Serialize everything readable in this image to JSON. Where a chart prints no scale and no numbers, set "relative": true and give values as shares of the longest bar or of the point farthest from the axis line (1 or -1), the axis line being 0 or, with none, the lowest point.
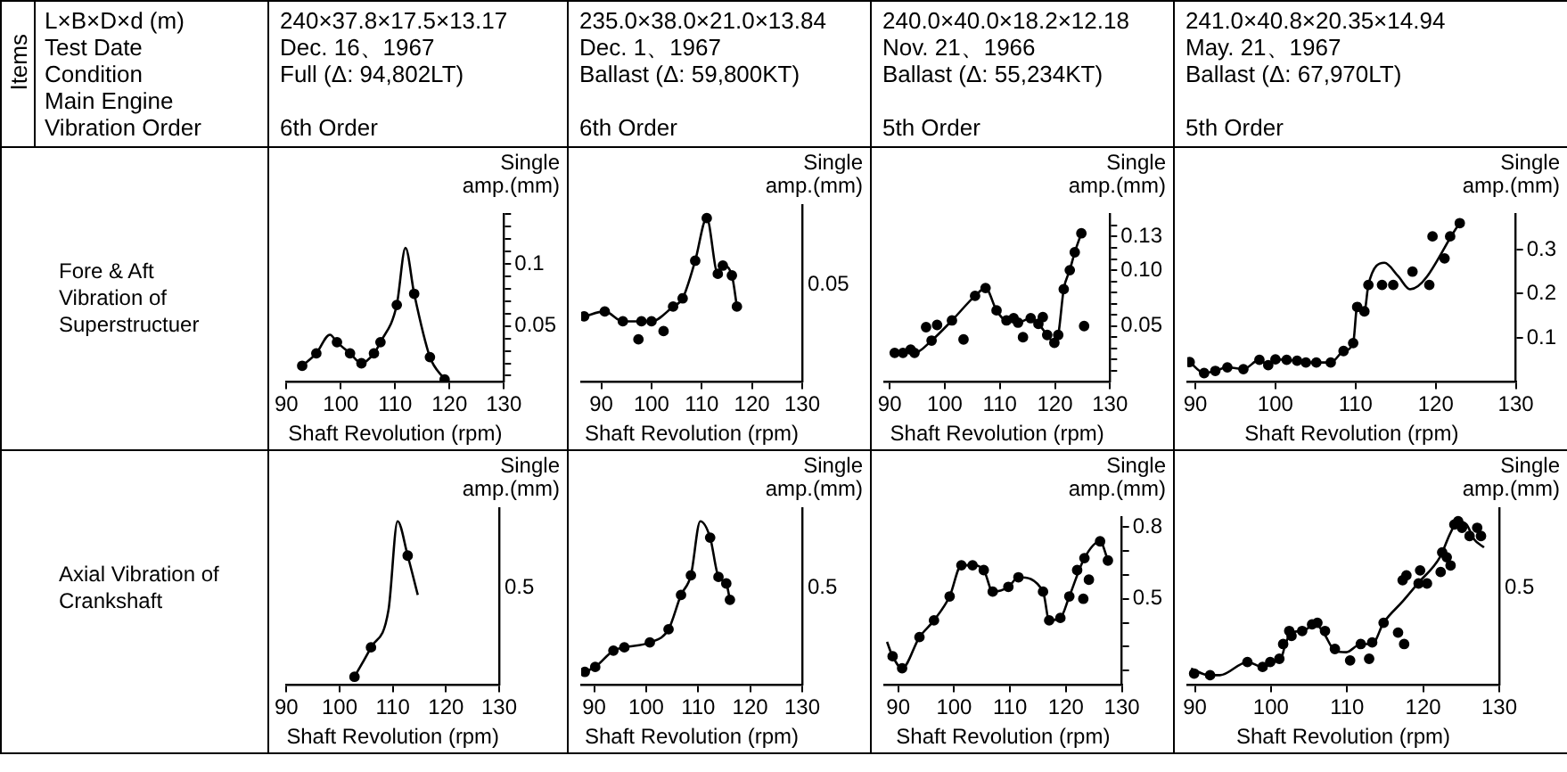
{
  "chart_data": [
    {
      "type": "other",
      "title": "Items",
      "annotations": [
        "L×B×D×d (m)",
        "Test Date",
        "Condition",
        "Main Engine",
        "Vibration Order"
      ]
    },
    {
      "type": "other",
      "annotations": [
        "240×37.8×17.5×13.17",
        "Dec. 16、1967",
        "Full (Δ: 94,802LT)",
        "6th Order"
      ]
    },
    {
      "type": "other",
      "annotations": [
        "235.0×38.0×21.0×13.84",
        "Dec. 1、1967",
        "Ballast (Δ: 59,800KT)",
        "6th Order"
      ]
    },
    {
      "type": "other",
      "annotations": [
        "240.0×40.0×18.2×12.18",
        "Nov. 21、1966",
        "Ballast (Δ: 55,234KT)",
        "5th Order"
      ]
    },
    {
      "type": "other",
      "annotations": [
        "241.0×40.8×20.35×14.94",
        "May. 21、1967",
        "Ballast (Δ: 67,970LT)",
        "5th Order"
      ]
    },
    {
      "type": "other",
      "title": "Fore & Aft Vibration of Superstructuer"
    },
    {
      "type": "line",
      "xlabel": "Shaft Revolution (rpm)",
      "ylabel": "Single amp.(mm)",
      "xlim": [
        90,
        130
      ],
      "xticks": [
        90,
        100,
        110,
        120,
        130
      ],
      "ylim": [
        0.005,
        0.14
      ],
      "yticks": [
        {
          "value": 0.01,
          "label": null
        },
        {
          "value": 0.02,
          "label": null
        },
        {
          "value": 0.03,
          "label": null
        },
        {
          "value": 0.04,
          "label": null
        },
        0.05,
        {
          "value": 0.06,
          "label": null
        },
        {
          "value": 0.07,
          "label": null
        },
        {
          "value": 0.08,
          "label": null
        },
        {
          "value": 0.09,
          "label": null
        },
        0.1,
        {
          "value": 0.11,
          "label": null
        },
        {
          "value": 0.12,
          "label": null
        },
        {
          "value": 0.13,
          "label": null
        },
        {
          "value": 0.14,
          "label": null
        }
      ],
      "series": [
        {
          "type": "line",
          "color": "#000000",
          "marker": "none",
          "x": [
            92.9,
            95.5,
            98.0,
            99.3,
            101.7,
            103.8,
            106.1,
            107.3,
            110.3,
            111.9,
            113.5,
            116.4,
            119.1
          ],
          "values": [
            0.018,
            0.028,
            0.043,
            0.037,
            0.028,
            0.02,
            0.028,
            0.037,
            0.067,
            0.113,
            0.076,
            0.025,
            0.007
          ]
        },
        {
          "type": "scatter",
          "color": "#000000",
          "marker": "circle",
          "x": [
            92.9,
            95.5,
            99.3,
            101.7,
            103.8,
            106.1,
            107.3,
            110.3,
            113.5,
            116.4,
            119.1
          ],
          "values": [
            0.018,
            0.028,
            0.037,
            0.028,
            0.02,
            0.028,
            0.037,
            0.067,
            0.076,
            0.025,
            0.007
          ]
        }
      ]
    },
    {
      "type": "line",
      "relative": true,
      "xlabel": "Shaft Revolution (rpm)",
      "ylabel": "Single amp.(mm)",
      "xlim": [
        86,
        130
      ],
      "xticks": [
        90,
        100,
        110,
        120,
        130
      ],
      "annotations": [
        "0.05"
      ],
      "series": [
        {
          "type": "line",
          "color": "#000000",
          "marker": "none",
          "x": [
            86.6,
            90.7,
            94.3,
            98.0,
            100.0,
            104.3,
            106.2,
            108.7,
            111.0,
            113.2,
            114.2,
            116.0,
            117.0
          ],
          "values": [
            0.4,
            0.43,
            0.37,
            0.37,
            0.37,
            0.46,
            0.51,
            0.74,
            1,
            0.66,
            0.71,
            0.65,
            0.46
          ]
        },
        {
          "type": "scatter",
          "color": "#000000",
          "marker": "circle",
          "x": [
            86.6,
            90.7,
            94.3,
            98.0,
            100.0,
            104.3,
            106.2,
            108.7,
            111.0,
            113.2,
            114.2,
            116.0,
            117.0,
            97.4,
            102.4
          ],
          "values": [
            0.4,
            0.43,
            0.37,
            0.37,
            0.37,
            0.46,
            0.51,
            0.74,
            1,
            0.66,
            0.71,
            0.65,
            0.46,
            0.26,
            0.31
          ]
        }
      ]
    },
    {
      "type": "line",
      "xlabel": "Shaft Revolution (rpm)",
      "ylabel": "Single amp.(mm)",
      "xlim": [
        89,
        130
      ],
      "xticks": [
        90,
        100,
        110,
        120,
        130
      ],
      "ylim": [
        0,
        0.15
      ],
      "yticks": [
        {
          "value": 0.01,
          "label": null
        },
        {
          "value": 0.02,
          "label": null
        },
        {
          "value": 0.03,
          "label": null
        },
        {
          "value": 0.04,
          "label": null
        },
        0.05,
        {
          "value": 0.06,
          "label": null
        },
        {
          "value": 0.07,
          "label": null
        },
        {
          "value": 0.08,
          "label": null
        },
        {
          "value": 0.09,
          "label": null
        },
        {
          "value": 0.1,
          "label": "0.10"
        },
        {
          "value": 0.11,
          "label": null
        },
        {
          "value": 0.12,
          "label": null
        },
        0.13,
        {
          "value": 0.14,
          "label": null
        }
      ],
      "series": [
        {
          "type": "line",
          "color": "#000000",
          "marker": "none",
          "x": [
            90.9,
            92.4,
            93.8,
            94.5,
            97.6,
            101.3,
            105.5,
            107.4,
            109.4,
            111.2,
            112.5,
            113.3,
            115.6,
            117.0,
            118.6,
            119.9,
            120.6,
            121.6,
            122.7,
            123.6,
            124.8
          ],
          "values": [
            0.026,
            0.026,
            0.029,
            0.026,
            0.037,
            0.055,
            0.077,
            0.084,
            0.064,
            0.055,
            0.057,
            0.053,
            0.057,
            0.052,
            0.042,
            0.035,
            0.042,
            0.083,
            0.1,
            0.116,
            0.133
          ]
        },
        {
          "type": "scatter",
          "color": "#000000",
          "marker": "circle",
          "x": [
            90.9,
            92.4,
            93.8,
            94.5,
            97.6,
            101.3,
            105.5,
            107.4,
            109.4,
            111.2,
            112.5,
            113.3,
            115.6,
            117.0,
            118.6,
            119.9,
            120.6,
            121.6,
            122.7,
            123.6,
            124.8,
            96.6,
            98.6,
            103.4,
            114.2,
            117.8,
            125.3
          ],
          "values": [
            0.026,
            0.026,
            0.029,
            0.026,
            0.037,
            0.055,
            0.077,
            0.084,
            0.064,
            0.055,
            0.057,
            0.053,
            0.057,
            0.052,
            0.042,
            0.035,
            0.042,
            0.083,
            0.1,
            0.116,
            0.133,
            0.049,
            0.051,
            0.038,
            0.04,
            0.058,
            0.05
          ]
        }
      ]
    },
    {
      "type": "line",
      "xlabel": "Shaft Revolution (rpm)",
      "ylabel": "Single amp.(mm)",
      "xlim": [
        89,
        130
      ],
      "xticks": [
        90,
        100,
        110,
        120,
        130
      ],
      "ylim": [
        0,
        0.38
      ],
      "yticks": [
        0.1,
        0.2,
        0.3
      ],
      "series": [
        {
          "type": "line",
          "color": "#000000",
          "marker": "none",
          "x": [
            89.3,
            91.1,
            92.5,
            94.0,
            96.0,
            98.0,
            99.1,
            100.0,
            101.4,
            102.7,
            103.8,
            105.1,
            106.9,
            108.5,
            109.7,
            110.2,
            111.1,
            111.6,
            113.6,
            115.3,
            116.8,
            123.0
          ],
          "values": [
            0.045,
            0.02,
            0.025,
            0.033,
            0.029,
            0.05,
            0.038,
            0.051,
            0.05,
            0.048,
            0.044,
            0.044,
            0.044,
            0.07,
            0.088,
            0.17,
            0.16,
            0.22,
            0.27,
            0.24,
            0.21,
            0.36
          ]
        },
        {
          "type": "scatter",
          "color": "#000000",
          "marker": "circle",
          "x": [
            89.3,
            91.1,
            92.5,
            94.0,
            96.0,
            98.0,
            99.1,
            100.0,
            101.4,
            102.7,
            103.8,
            105.1,
            106.9,
            108.5,
            109.7,
            110.2,
            111.1,
            111.6,
            113.3,
            114.7,
            117.1,
            119.2,
            119.6,
            121.1,
            121.8,
            123.0
          ],
          "values": [
            0.045,
            0.02,
            0.025,
            0.033,
            0.029,
            0.05,
            0.038,
            0.051,
            0.05,
            0.048,
            0.044,
            0.044,
            0.044,
            0.07,
            0.088,
            0.17,
            0.16,
            0.22,
            0.22,
            0.22,
            0.25,
            0.22,
            0.33,
            0.28,
            0.33,
            0.36
          ]
        }
      ]
    },
    {
      "type": "other",
      "title": "Axial Vibration of Crankshaft"
    },
    {
      "type": "line",
      "relative": true,
      "xlabel": "Shaft Revolution (rpm)",
      "ylabel": "Single amp.(mm)",
      "xlim": [
        90,
        130
      ],
      "xticks": [
        90,
        100,
        110,
        120,
        130
      ],
      "annotations": [
        "0.5"
      ],
      "series": [
        {
          "type": "line",
          "color": "#000000",
          "marker": "none",
          "x": [
            102.8,
            105.9,
            109.2,
            110.9,
            112.8,
            114.7
          ],
          "values": [
            0.05,
            0.23,
            0.46,
            1,
            0.79,
            0.55
          ]
        },
        {
          "type": "scatter",
          "color": "#000000",
          "marker": "circle",
          "x": [
            102.8,
            105.9,
            112.8
          ],
          "values": [
            0.05,
            0.23,
            0.79
          ]
        }
      ]
    },
    {
      "type": "line",
      "relative": true,
      "xlabel": "Shaft Revolution (rpm)",
      "ylabel": "Single amp.(mm)",
      "xlim": [
        87.5,
        130
      ],
      "xticks": [
        90,
        100,
        110,
        120,
        130
      ],
      "annotations": [
        "0.5"
      ],
      "series": [
        {
          "type": "line",
          "color": "#000000",
          "marker": "none",
          "x": [
            88.2,
            90.2,
            93.7,
            95.8,
            100.7,
            104.3,
            106.7,
            108.6,
            110.4,
            112.3,
            113.9,
            115.4,
            116.1
          ],
          "values": [
            0.08,
            0.11,
            0.21,
            0.23,
            0.26,
            0.34,
            0.55,
            0.67,
            1,
            0.9,
            0.66,
            0.62,
            0.52
          ]
        },
        {
          "type": "scatter",
          "color": "#000000",
          "marker": "circle",
          "x": [
            88.2,
            90.2,
            93.7,
            95.8,
            100.7,
            104.3,
            106.7,
            108.6,
            112.3,
            113.9,
            115.4,
            116.1
          ],
          "values": [
            0.08,
            0.11,
            0.21,
            0.23,
            0.26,
            0.34,
            0.55,
            0.67,
            0.9,
            0.66,
            0.62,
            0.52
          ]
        }
      ]
    },
    {
      "type": "line",
      "xlabel": "Shaft Revolution (rpm)",
      "ylabel": "Single amp.(mm)",
      "xlim": [
        87.5,
        130
      ],
      "xticks": [
        90,
        100,
        110,
        120,
        130
      ],
      "ylim": [
        0.14,
        0.84
      ],
      "yticks": [
        {
          "value": 0.2,
          "label": null
        },
        {
          "value": 0.3,
          "label": null
        },
        {
          "value": 0.4,
          "label": null
        },
        0.5,
        {
          "value": 0.6,
          "label": null
        },
        {
          "value": 0.7,
          "label": null
        },
        0.8
      ],
      "series": [
        {
          "type": "line",
          "color": "#000000",
          "marker": "none",
          "x": [
            88.0,
            89.0,
            90.7,
            93.8,
            96.4,
            99.2,
            101.3,
            103.3,
            105.3,
            106.9,
            109.7,
            111.5,
            115.9,
            117.0,
            119.0,
            120.6,
            123.3,
            126.1,
            127.5
          ],
          "values": [
            0.32,
            0.26,
            0.21,
            0.34,
            0.41,
            0.51,
            0.64,
            0.64,
            0.62,
            0.53,
            0.55,
            0.59,
            0.53,
            0.41,
            0.42,
            0.51,
            0.67,
            0.74,
            0.66
          ]
        },
        {
          "type": "scatter",
          "color": "#000000",
          "marker": "circle",
          "x": [
            89.0,
            90.7,
            93.8,
            96.4,
            99.2,
            101.3,
            103.3,
            105.3,
            106.9,
            109.7,
            111.5,
            115.9,
            117.0,
            119.0,
            120.6,
            123.3,
            126.1,
            127.5,
            122.0,
            123.1,
            124.1
          ],
          "values": [
            0.26,
            0.21,
            0.34,
            0.41,
            0.51,
            0.64,
            0.64,
            0.62,
            0.53,
            0.55,
            0.59,
            0.53,
            0.41,
            0.42,
            0.51,
            0.67,
            0.74,
            0.66,
            0.62,
            0.5,
            0.58
          ]
        }
      ]
    },
    {
      "type": "line",
      "relative": true,
      "xlabel": "Shaft Revolution (rpm)",
      "ylabel": "Single amp.(mm)",
      "xlim": [
        89,
        130
      ],
      "xticks": [
        90,
        100,
        110,
        120,
        130
      ],
      "annotations": [
        "0.5"
      ],
      "series": [
        {
          "type": "line",
          "color": "#000000",
          "marker": "none",
          "x": [
            89.5,
            91.8,
            93.3,
            96.9,
            98.9,
            100.4,
            101.4,
            101.9,
            102.7,
            104.1,
            105.9,
            106.9,
            108.4,
            109.9,
            111.8,
            113.3,
            114.8,
            117.3,
            119.3,
            122.2,
            123.6,
            124.6,
            125.7,
            126.7,
            128.0
          ],
          "values": [
            0.1,
            0.06,
            0.06,
            0.14,
            0.11,
            0.14,
            0.17,
            0.25,
            0.32,
            0.33,
            0.37,
            0.32,
            0.21,
            0.2,
            0.25,
            0.25,
            0.38,
            0.51,
            0.62,
            0.78,
            0.93,
            1,
            0.98,
            0.89,
            0.84
          ]
        },
        {
          "type": "scatter",
          "color": "#000000",
          "marker": "circle",
          "x": [
            89.9,
            92.0,
            96.9,
            98.9,
            99.9,
            101.1,
            101.6,
            102.4,
            102.7,
            104.1,
            105.4,
            106.1,
            107.1,
            108.4,
            110.4,
            112.9,
            111.8,
            113.3,
            114.8,
            116.7,
            117.5,
            117.3,
            117.8,
            119.6,
            119.4,
            120.5,
            122.3,
            122.5,
            123.6,
            123.1,
            124.1,
            124.6,
            125.1,
            126.1,
            127.1,
            127.6
          ],
          "values": [
            0.07,
            0.06,
            0.14,
            0.11,
            0.14,
            0.16,
            0.25,
            0.33,
            0.3,
            0.33,
            0.37,
            0.38,
            0.33,
            0.22,
            0.15,
            0.16,
            0.25,
            0.26,
            0.38,
            0.32,
            0.25,
            0.64,
            0.67,
            0.7,
            0.62,
            0.62,
            0.69,
            0.81,
            0.73,
            0.78,
            0.98,
            1,
            0.96,
            0.91,
            0.96,
            0.91
          ]
        }
      ]
    }
  ]
}
